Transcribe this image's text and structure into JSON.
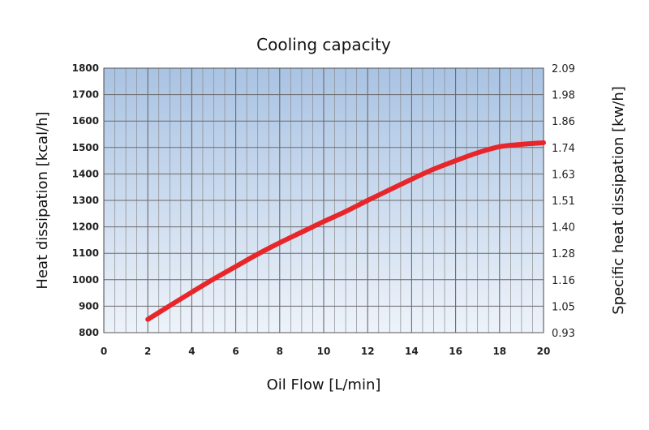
{
  "chart_data": {
    "type": "line",
    "title": "Cooling capacity",
    "xlabel": "Oil Flow [L/min]",
    "ylabel": "Heat dissipation [kcal/h]",
    "ylabel_right": "Specific heat dissipation [kw/h]",
    "xlim": [
      0,
      20
    ],
    "ylim": [
      800,
      1800
    ],
    "x_ticks": [
      "0",
      "2",
      "4",
      "6",
      "8",
      "10",
      "12",
      "14",
      "16",
      "18",
      "20"
    ],
    "y_ticks": [
      "800",
      "900",
      "1000",
      "1100",
      "1200",
      "1300",
      "1400",
      "1500",
      "1600",
      "1700",
      "1800"
    ],
    "y_ticks_right": [
      "0.93",
      "1.05",
      "1.16",
      "1.28",
      "1.40",
      "1.51",
      "1.63",
      "1.74",
      "1.86",
      "1.98",
      "2.09"
    ],
    "grid": true,
    "background_gradient": [
      "#a9c3e3",
      "#eef3fa"
    ],
    "line_color": "#e8262a",
    "series": [
      {
        "x": [
          2,
          3,
          4,
          5,
          6,
          7,
          8,
          9,
          10,
          11,
          12,
          13,
          14,
          15,
          16,
          17,
          18,
          19,
          20
        ],
        "values": [
          850,
          902,
          953,
          1003,
          1050,
          1097,
          1140,
          1180,
          1220,
          1258,
          1300,
          1340,
          1380,
          1418,
          1450,
          1480,
          1503,
          1512,
          1518
        ]
      }
    ]
  }
}
